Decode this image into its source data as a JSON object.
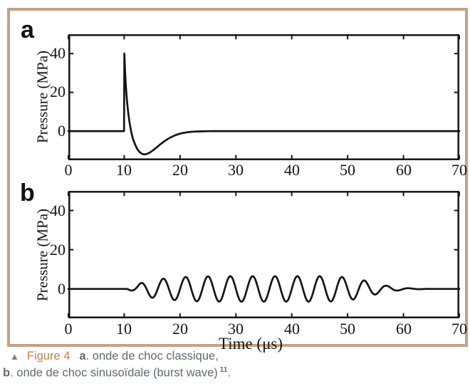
{
  "frame": {
    "border_color": "#c3a284",
    "background": "#ffffff"
  },
  "xlabel": "Time (μs)",
  "chart_data": [
    {
      "type": "line",
      "panel": "a",
      "title": "",
      "xlabel": "Time (μs)",
      "ylabel": "Pressure (MPa)",
      "xlim": [
        0,
        70
      ],
      "ylim": [
        -15,
        50
      ],
      "x_ticks": [
        0,
        10,
        20,
        30,
        40,
        50,
        60,
        70
      ],
      "y_ticks": [
        0,
        20,
        40
      ],
      "grid": false,
      "legend": false,
      "line_color": "#151515",
      "line_width": 2.7,
      "description": "Classic shock wave: 0 MPa until 10 us, instantaneous rise to +40 MPa, steep decay crossing zero near 11 us, undershoot to about -12 MPa at ~13.6 us, smooth recovery to 0 by ~25 us",
      "points": [
        [
          0,
          0
        ],
        [
          9.97,
          0
        ],
        [
          10.03,
          40
        ],
        [
          10.15,
          31
        ],
        [
          10.3,
          23
        ],
        [
          10.5,
          15.5
        ],
        [
          10.7,
          10
        ],
        [
          10.9,
          5.5
        ],
        [
          11.1,
          2
        ],
        [
          11.3,
          -1
        ],
        [
          11.6,
          -4.3
        ],
        [
          12,
          -7.3
        ],
        [
          12.4,
          -9.5
        ],
        [
          12.8,
          -10.9
        ],
        [
          13.2,
          -11.7
        ],
        [
          13.6,
          -12
        ],
        [
          14,
          -11.8
        ],
        [
          14.5,
          -11.2
        ],
        [
          15,
          -10.2
        ],
        [
          15.5,
          -9.1
        ],
        [
          16,
          -7.9
        ],
        [
          16.5,
          -6.7
        ],
        [
          17,
          -5.6
        ],
        [
          17.5,
          -4.6
        ],
        [
          18,
          -3.7
        ],
        [
          18.5,
          -2.95
        ],
        [
          19,
          -2.3
        ],
        [
          19.5,
          -1.75
        ],
        [
          20,
          -1.3
        ],
        [
          20.5,
          -0.95
        ],
        [
          21,
          -0.7
        ],
        [
          21.5,
          -0.5
        ],
        [
          22,
          -0.35
        ],
        [
          22.5,
          -0.24
        ],
        [
          23,
          -0.16
        ],
        [
          24,
          -0.07
        ],
        [
          25,
          -0.02
        ],
        [
          26,
          0
        ],
        [
          70,
          0
        ]
      ]
    },
    {
      "type": "line",
      "panel": "b",
      "title": "",
      "xlabel": "Time (μs)",
      "ylabel": "Pressure (MPa)",
      "xlim": [
        0,
        70
      ],
      "ylim": [
        -15,
        50
      ],
      "x_ticks": [
        0,
        10,
        20,
        30,
        40,
        50,
        60,
        70
      ],
      "y_ticks": [
        0,
        20,
        40
      ],
      "grid": false,
      "legend": false,
      "line_color": "#151515",
      "line_width": 2.7,
      "description": "Sinusoidal burst wave: ~0.25 MHz tone burst starting near 10.5 us, first peak at 13 us, amplitude ramps to about +/-6.5 MPa, sustained until ~50 us, decays to 0 by ~63 us",
      "waveform": {
        "kind": "sine_burst",
        "period_us": 4,
        "phase_peak_us": 13,
        "start_us": 10.5,
        "sample_step_us": 0.08,
        "peak_amplitude_mpa": 6.5,
        "envelope": [
          [
            10.5,
            0
          ],
          [
            11,
            0.6
          ],
          [
            12,
            1.6
          ],
          [
            13,
            3
          ],
          [
            14,
            3.9
          ],
          [
            15,
            4.5
          ],
          [
            17,
            5.2
          ],
          [
            19,
            5.7
          ],
          [
            21,
            6.1
          ],
          [
            23,
            6.3
          ],
          [
            25,
            6.4
          ],
          [
            29,
            6.5
          ],
          [
            45,
            6.5
          ],
          [
            47,
            6.4
          ],
          [
            49,
            6.1
          ],
          [
            51,
            5.4
          ],
          [
            53,
            4.3
          ],
          [
            55,
            2.8
          ],
          [
            57,
            1.6
          ],
          [
            59,
            0.8
          ],
          [
            61,
            0.35
          ],
          [
            63,
            0.12
          ],
          [
            65,
            0
          ],
          [
            70,
            0
          ]
        ]
      }
    }
  ],
  "caption": {
    "marker": "▲",
    "figure_label": "Figure 4",
    "line1_bold": "a",
    "line1_text": ". onde de choc classique,",
    "line2_bold": "b",
    "line2_text": ". onde de choc sinusoïdale (burst wave)",
    "line2_superscript": "11",
    "line2_period": ".",
    "colors": {
      "figure_label": "#bd8349",
      "marker": "#75818d",
      "text": "#5e6a75"
    }
  }
}
